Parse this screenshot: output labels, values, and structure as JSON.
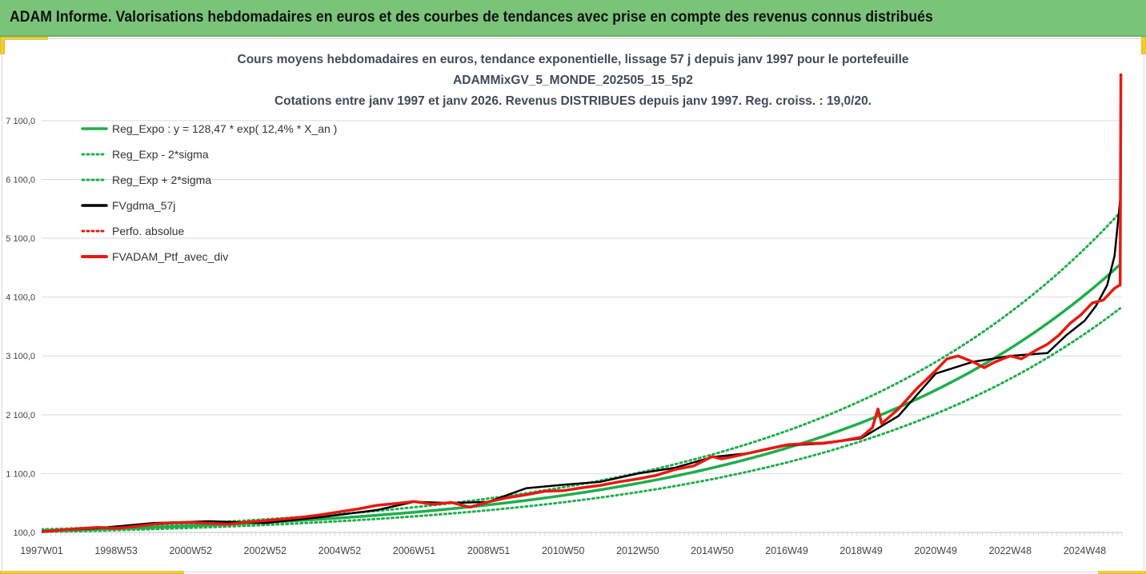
{
  "header": {
    "title": "ADAM Informe. Valorisations hebdomadaires en euros et des courbes de tendances avec prise en compte des revenus connus distribués"
  },
  "colors": {
    "header_bg": "#7ac47a",
    "accent": "#f2c200",
    "trend_green": "#1fae4c",
    "smooth_black": "#000000",
    "portfolio_red": "#e8190f"
  },
  "chart_data": {
    "type": "line",
    "title_lines": [
      "Cours moyens hebdomadaires  en euros, tendance exponentielle, lissage 57 j depuis janv 1997 pour le portefeuille",
      "ADAMMixGV_5_MONDE_202505_15_5p2",
      "Cotations entre janv 1997 et janv 2026. Revenus DISTRIBUES depuis janv 1997. Reg. croiss. : 19,0/20."
    ],
    "xlabel": "",
    "ylabel": "",
    "x_tick_labels": [
      "1997W01",
      "1998W53",
      "2000W52",
      "2002W52",
      "2004W52",
      "2006W51",
      "2008W51",
      "2010W50",
      "2012W50",
      "2014W50",
      "2016W49",
      "2018W49",
      "2020W49",
      "2022W48",
      "2024W48"
    ],
    "x_tick_years": [
      1997.0,
      1999.0,
      2001.0,
      2003.0,
      2005.0,
      2007.0,
      2009.0,
      2011.0,
      2013.0,
      2015.0,
      2017.0,
      2019.0,
      2021.0,
      2023.0,
      2025.0
    ],
    "xlim": [
      1997.0,
      2026.0
    ],
    "y_tick_labels": [
      "100,0",
      "1 100,0",
      "2 100,0",
      "3 100,0",
      "4 100,0",
      "5 100,0",
      "6 100,0",
      "7 100,0"
    ],
    "y_ticks": [
      100,
      1100,
      2100,
      3100,
      4100,
      5100,
      6100,
      7100
    ],
    "ylim": [
      100,
      7900
    ],
    "grid": "horizontal",
    "legend_position": "top-left",
    "trend_formula": {
      "a": 128.47,
      "rate_pct": 12.4,
      "sigma_band_factor_low": 0.84,
      "sigma_band_factor_high": 1.19
    },
    "series": [
      {
        "name": "Reg_Expo : y = 128,47 * exp( 12,4% *  X_an )",
        "style": "solid",
        "color": "#1fae4c"
      },
      {
        "name": "Reg_Exp - 2*sigma",
        "style": "dotted",
        "color": "#1fae4c"
      },
      {
        "name": "Reg_Exp + 2*sigma",
        "style": "dotted",
        "color": "#1fae4c"
      },
      {
        "name": "FVgdma_57j",
        "style": "solid",
        "color": "#000000",
        "x": [
          1997.0,
          1998.5,
          2000.0,
          2001.5,
          2003.0,
          2004.5,
          2006.0,
          2007.0,
          2008.0,
          2009.0,
          2010.0,
          2011.0,
          2012.0,
          2013.0,
          2014.0,
          2015.0,
          2016.0,
          2017.0,
          2018.0,
          2019.0,
          2020.0,
          2021.0,
          2022.0,
          2023.0,
          2024.0,
          2024.5,
          2025.0,
          2025.3,
          2025.6,
          2025.8,
          2025.95
        ],
        "y": [
          120,
          170,
          260,
          290,
          260,
          360,
          480,
          620,
          600,
          620,
          850,
          910,
          960,
          1100,
          1200,
          1380,
          1450,
          1580,
          1610,
          1700,
          2080,
          2800,
          3000,
          3100,
          3150,
          3450,
          3700,
          3950,
          4300,
          4800,
          5750
        ]
      },
      {
        "name": "Perfo. absolue",
        "style": "dotted",
        "color": "#e8190f",
        "x": [
          1997.0,
          2025.95
        ],
        "y": [
          100,
          4280
        ]
      },
      {
        "name": "FVADAM_Ptf_avec_div",
        "style": "solid",
        "color": "#e8190f",
        "x": [
          1997.0,
          1997.5,
          1998.0,
          1998.5,
          1999.0,
          1999.5,
          2000.0,
          2000.5,
          2001.0,
          2001.5,
          2002.0,
          2002.5,
          2003.0,
          2003.5,
          2004.0,
          2004.5,
          2005.0,
          2005.5,
          2006.0,
          2006.5,
          2007.0,
          2007.5,
          2008.0,
          2008.5,
          2009.0,
          2009.5,
          2010.0,
          2010.5,
          2011.0,
          2011.5,
          2012.0,
          2012.5,
          2013.0,
          2013.5,
          2014.0,
          2014.5,
          2015.0,
          2015.25,
          2015.5,
          2016.0,
          2016.5,
          2017.0,
          2017.5,
          2018.0,
          2018.5,
          2019.0,
          2019.3,
          2019.45,
          2019.55,
          2020.0,
          2020.5,
          2021.0,
          2021.3,
          2021.6,
          2022.0,
          2022.3,
          2022.6,
          2023.0,
          2023.3,
          2023.7,
          2024.0,
          2024.3,
          2024.6,
          2024.9,
          2025.2,
          2025.5,
          2025.8,
          2025.93,
          2025.95,
          2025.97
        ],
        "y": [
          110,
          140,
          165,
          185,
          170,
          200,
          240,
          265,
          270,
          255,
          240,
          275,
          300,
          330,
          360,
          400,
          450,
          500,
          560,
          590,
          625,
          580,
          610,
          530,
          620,
          690,
          740,
          800,
          810,
          860,
          900,
          960,
          1010,
          1070,
          1170,
          1230,
          1390,
          1350,
          1380,
          1450,
          1520,
          1590,
          1610,
          1620,
          1660,
          1720,
          1880,
          2200,
          1950,
          2200,
          2550,
          2850,
          3050,
          3100,
          3000,
          2900,
          3000,
          3100,
          3050,
          3200,
          3300,
          3450,
          3650,
          3800,
          4000,
          4050,
          4250,
          4300,
          4300,
          7900
        ]
      }
    ]
  }
}
